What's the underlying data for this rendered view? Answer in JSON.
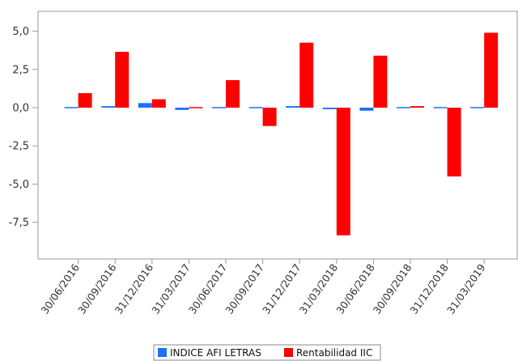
{
  "chart_data": {
    "type": "bar",
    "categories": [
      "30/06/2016",
      "30/09/2016",
      "31/12/2016",
      "31/03/2017",
      "30/06/2017",
      "30/09/2017",
      "31/12/2017",
      "31/03/2018",
      "30/06/2018",
      "30/09/2018",
      "31/12/2018",
      "31/03/2019"
    ],
    "series": [
      {
        "name": "INDICE AFI LETRAS",
        "color": "#1e6fff",
        "values": [
          0.0,
          0.1,
          0.3,
          -0.15,
          0.0,
          0.0,
          0.1,
          -0.1,
          -0.2,
          -0.05,
          -0.05,
          0.0
        ]
      },
      {
        "name": "Rentabilidad IIC",
        "color": "#ff0000",
        "values": [
          0.95,
          3.65,
          0.55,
          0.0,
          1.8,
          -1.2,
          4.25,
          -8.35,
          3.4,
          0.1,
          -4.5,
          4.9
        ]
      }
    ],
    "yticks": [
      "5,0",
      "2,5",
      "0,0",
      "-2,5",
      "-5,0",
      "-7,5"
    ],
    "ytick_values": [
      5.0,
      2.5,
      0.0,
      -2.5,
      -5.0,
      -7.5
    ],
    "ylim": [
      -9.9,
      6.3
    ],
    "grid": false,
    "legend_position": "bottom"
  }
}
